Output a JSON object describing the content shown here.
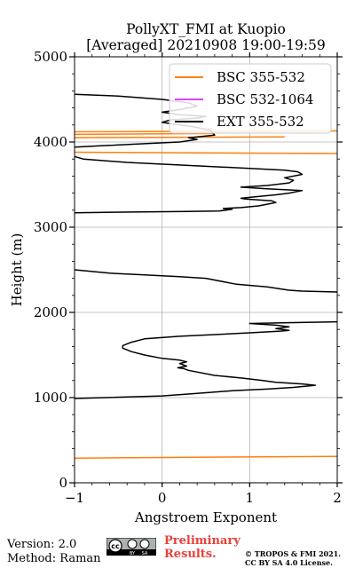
{
  "chart_data": {
    "type": "line",
    "title": "PollyXT_FMI at Kuopio",
    "subtitle": "[Averaged] 20210908 19:00-19:59",
    "xlabel": "Angstroem Exponent",
    "ylabel": "Height (m)",
    "xlim": [
      -1,
      2
    ],
    "ylim": [
      0,
      5000
    ],
    "xticks": [
      -1,
      0,
      1,
      2
    ],
    "xtick_labels": [
      "−1",
      "0",
      "1",
      "2"
    ],
    "yticks": [
      0,
      1000,
      2000,
      3000,
      4000,
      5000
    ],
    "ytick_labels": [
      "0",
      "1000",
      "2000",
      "3000",
      "4000",
      "5000"
    ],
    "grid": true,
    "legend_position": "top-right",
    "series": [
      {
        "name": "BSC 355-532",
        "color": "#ff7f0e",
        "segments": [
          [
            [
              -1,
              290
            ],
            [
              2,
              310
            ]
          ],
          [
            [
              -1,
              3880
            ],
            [
              2,
              3865
            ]
          ],
          [
            [
              -1,
              4050
            ],
            [
              1.4,
              4060
            ]
          ],
          [
            [
              -1,
              4090
            ],
            [
              0.6,
              4100
            ]
          ],
          [
            [
              -1,
              4120
            ],
            [
              2,
              4130
            ]
          ]
        ]
      },
      {
        "name": "BSC 532-1064",
        "color": "#e040fb",
        "segments": []
      },
      {
        "name": "EXT 355-532",
        "color": "#000000",
        "segments": [
          [
            [
              -1,
              990
            ],
            [
              0.0,
              1020
            ],
            [
              0.4,
              1050
            ],
            [
              0.8,
              1080
            ],
            [
              1.2,
              1100
            ],
            [
              1.5,
              1120
            ],
            [
              1.75,
              1145
            ],
            [
              1.6,
              1160
            ],
            [
              1.3,
              1180
            ],
            [
              1.15,
              1200
            ],
            [
              0.9,
              1230
            ],
            [
              0.6,
              1260
            ],
            [
              0.4,
              1300
            ],
            [
              0.3,
              1320
            ],
            [
              0.25,
              1340
            ],
            [
              0.18,
              1350
            ],
            [
              0.28,
              1370
            ],
            [
              0.2,
              1400
            ],
            [
              0.28,
              1420
            ],
            [
              0.2,
              1440
            ],
            [
              0.0,
              1460
            ],
            [
              -0.2,
              1500
            ],
            [
              -0.35,
              1540
            ],
            [
              -0.45,
              1580
            ],
            [
              -0.45,
              1610
            ],
            [
              -0.35,
              1650
            ],
            [
              -0.2,
              1690
            ],
            [
              0.2,
              1720
            ],
            [
              0.6,
              1740
            ],
            [
              1.0,
              1760
            ],
            [
              1.35,
              1780
            ],
            [
              1.45,
              1790
            ],
            [
              1.3,
              1810
            ],
            [
              1.45,
              1830
            ],
            [
              1.3,
              1850
            ],
            [
              1.0,
              1870
            ],
            [
              1.5,
              1880
            ],
            [
              2.0,
              1890
            ]
          ],
          [
            [
              -1,
              2500
            ],
            [
              -0.6,
              2460
            ],
            [
              -0.2,
              2440
            ],
            [
              0.2,
              2420
            ],
            [
              0.5,
              2400
            ],
            [
              0.85,
              2330
            ],
            [
              1.2,
              2300
            ],
            [
              1.45,
              2260
            ],
            [
              1.6,
              2250
            ],
            [
              2.0,
              2240
            ]
          ],
          [
            [
              -1,
              3170
            ],
            [
              -0.2,
              3180
            ],
            [
              0.3,
              3185
            ],
            [
              0.65,
              3190
            ],
            [
              0.8,
              3210
            ],
            [
              0.7,
              3220
            ],
            [
              0.9,
              3230
            ],
            [
              1.1,
              3250
            ],
            [
              1.2,
              3270
            ],
            [
              1.3,
              3290
            ],
            [
              1.25,
              3310
            ],
            [
              0.95,
              3330
            ],
            [
              0.9,
              3340
            ],
            [
              1.1,
              3360
            ],
            [
              1.3,
              3380
            ],
            [
              1.45,
              3400
            ],
            [
              1.6,
              3430
            ],
            [
              1.2,
              3450
            ],
            [
              0.9,
              3470
            ],
            [
              1.2,
              3490
            ],
            [
              1.45,
              3520
            ],
            [
              1.5,
              3550
            ],
            [
              1.4,
              3580
            ],
            [
              1.6,
              3620
            ],
            [
              1.55,
              3650
            ],
            [
              1.4,
              3670
            ],
            [
              0.8,
              3700
            ],
            [
              -0.4,
              3760
            ],
            [
              -0.9,
              3800
            ],
            [
              -1.0,
              3830
            ]
          ],
          [
            [
              -1,
              3940
            ],
            [
              -0.6,
              3960
            ],
            [
              -0.2,
              3980
            ],
            [
              0.2,
              4000
            ],
            [
              0.4,
              4030
            ],
            [
              0.3,
              4050
            ],
            [
              0.6,
              4080
            ],
            [
              0.55,
              4140
            ],
            [
              0.35,
              4180
            ],
            [
              0.2,
              4200
            ],
            [
              0.0,
              4230
            ],
            [
              0.1,
              4260
            ],
            [
              0.4,
              4280
            ],
            [
              0.5,
              4300
            ],
            [
              0.2,
              4320
            ],
            [
              0.0,
              4350
            ],
            [
              0.2,
              4380
            ],
            [
              0.4,
              4420
            ],
            [
              0.3,
              4460
            ],
            [
              0.0,
              4500
            ],
            [
              -0.5,
              4540
            ],
            [
              -1.0,
              4560
            ]
          ]
        ]
      }
    ]
  },
  "footer": {
    "version": "Version: 2.0",
    "method": "Method: Raman",
    "preliminary_1": "Preliminary",
    "preliminary_2": "Results.",
    "copyright_1": "© TROPOS & FMI 2021.",
    "copyright_2": "CC BY SA 4.0 License.",
    "license_badge": [
      "cc",
      "BY",
      "SA"
    ]
  }
}
